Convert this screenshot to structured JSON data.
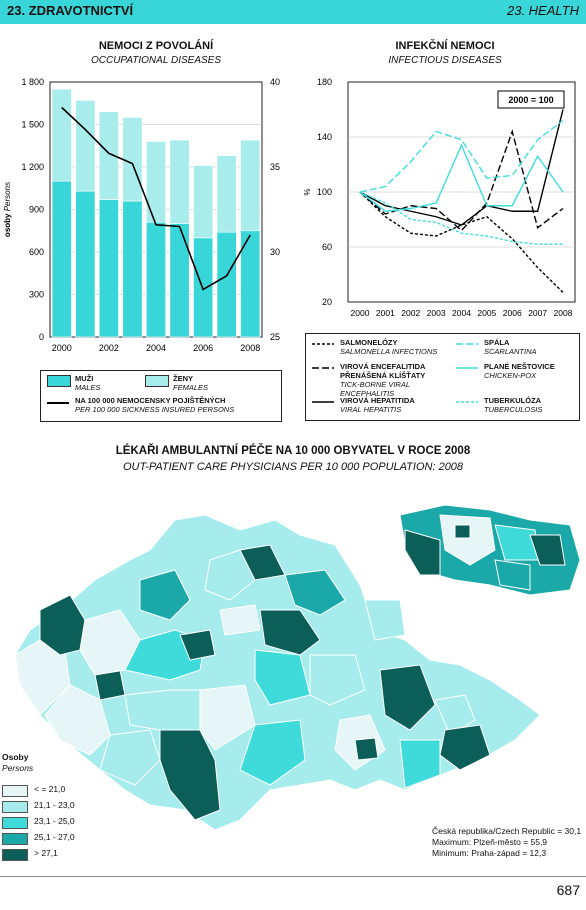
{
  "header": {
    "left": "23. ZDRAVOTNICTVÍ",
    "right": "23. HEALTH"
  },
  "occupational": {
    "title": "NEMOCI Z POVOLÁNÍ",
    "subtitle": "OCCUPATIONAL DISEASES",
    "ylabel": "osoby",
    "ylabel_en": "Persons",
    "legend": {
      "men": "MUŽI",
      "men_en": "MALES",
      "women": "ŽENY",
      "women_en": "FEMALES",
      "line": "NA 100 000 NEMOCENSKY POJIŠTĚNÝCH",
      "line_en": "PER 100 000 SICKNESS INSURED PERSONS"
    }
  },
  "infectious": {
    "title": "INFEKČNÍ NEMOCI",
    "subtitle": "INFECTIOUS DISEASES",
    "ylabel": "%",
    "base_label": "2000 = 100",
    "legend": [
      {
        "cz": "SALMONELÓZY",
        "en": "SALMONELLA INFECTIONS"
      },
      {
        "cz": "VIROVÁ ENCEFALITIDA PŘENÁŠENÁ KLÍŠŤATY",
        "en": "TICK-BORNE VIRAL ENCEPHALITIS"
      },
      {
        "cz": "VIROVÁ HEPATITIDA",
        "en": "VIRAL HEPATITIS"
      },
      {
        "cz": "SPÁLA",
        "en": "SCARLANTINA"
      },
      {
        "cz": "PLANÉ NEŠTOVICE",
        "en": "CHICKEN-POX"
      },
      {
        "cz": "TUBERKULÓZA",
        "en": "TUBERCULOSIS"
      }
    ]
  },
  "map": {
    "title": "LÉKAŘI AMBULANTNÍ PÉČE NA 10 000 OBYVATEL V ROCE 2008",
    "subtitle": "OUT-PATIENT CARE PHYSICIANS PER 10 000 POPULATION: 2008",
    "legend_title": "Osoby",
    "legend_sub": "Persons",
    "classes": [
      {
        "label": "< = 21,0",
        "color": "#e6f6f6"
      },
      {
        "label": "21,1 - 23,0",
        "color": "#a6ecec"
      },
      {
        "label": "23,1 - 25,0",
        "color": "#3fdbdb"
      },
      {
        "label": "25,1 - 27,0",
        "color": "#1aa8a8"
      },
      {
        "label": "> 27,1",
        "color": "#0b5f58"
      }
    ],
    "stats": [
      "Česká republika/Czech Republic = 30,1",
      "Maximum: Plzeň-město = 55,9",
      "Minimum: Praha-západ = 12,3"
    ]
  },
  "page_number": "687",
  "chart_data": [
    {
      "type": "bar",
      "title": "NEMOCI Z POVOLÁNÍ",
      "categories": [
        "2000",
        "2001",
        "2002",
        "2003",
        "2004",
        "2005",
        "2006",
        "2007",
        "2008"
      ],
      "xticks": [
        "2000",
        "2002",
        "2004",
        "2006",
        "2008"
      ],
      "series": [
        {
          "name": "MUŽI",
          "values": [
            1100,
            1030,
            970,
            960,
            810,
            800,
            700,
            740,
            750
          ],
          "color": "#38d6d8"
        },
        {
          "name": "ŽENY",
          "values": [
            650,
            640,
            620,
            590,
            570,
            590,
            510,
            540,
            640
          ],
          "color": "#a9ecec"
        },
        {
          "name": "NA 100 000 NEMOCENSKY POJIŠTĚNÝCH",
          "axis": "right",
          "values": [
            38.5,
            37.2,
            35.8,
            35.2,
            31.6,
            31.5,
            27.8,
            28.6,
            31.0
          ]
        }
      ],
      "yticks": [
        "0",
        "300",
        "600",
        "900",
        "1 200",
        "1 500",
        "1 800"
      ],
      "ylim": [
        0,
        1800
      ],
      "y2ticks": [
        "25",
        "30",
        "35",
        "40"
      ],
      "y2lim": [
        25,
        40
      ]
    },
    {
      "type": "line",
      "title": "INFEKČNÍ NEMOCI",
      "x": [
        "2000",
        "2001",
        "2002",
        "2003",
        "2004",
        "2005",
        "2006",
        "2007",
        "2008"
      ],
      "ylim": [
        20,
        180
      ],
      "yticks": [
        "20",
        "60",
        "100",
        "140",
        "180"
      ],
      "series": [
        {
          "name": "SALMONELÓZY",
          "values": [
            100,
            82,
            70,
            68,
            76,
            82,
            66,
            45,
            27
          ],
          "color": "#000000",
          "dash": "3,2"
        },
        {
          "name": "VIROVÁ ENCEFALITIDA PŘENÁŠENÁ KLÍŠŤATY",
          "values": [
            100,
            84,
            90,
            88,
            72,
            92,
            144,
            74,
            88
          ],
          "color": "#000000",
          "dash": "7,3"
        },
        {
          "name": "VIROVÁ HEPATITIDA",
          "values": [
            100,
            90,
            86,
            82,
            76,
            90,
            86,
            86,
            160
          ],
          "color": "#000000",
          "dash": ""
        },
        {
          "name": "SPÁLA",
          "values": [
            100,
            104,
            122,
            144,
            138,
            110,
            112,
            138,
            152
          ],
          "color": "#3fdede",
          "dash": "7,3"
        },
        {
          "name": "PLANÉ NEŠTOVICE",
          "values": [
            100,
            86,
            88,
            92,
            134,
            90,
            90,
            126,
            100
          ],
          "color": "#3fdede",
          "dash": ""
        },
        {
          "name": "TUBERKULÓZA",
          "values": [
            100,
            92,
            80,
            78,
            70,
            68,
            64,
            62,
            62
          ],
          "color": "#3fdede",
          "dash": "3,2"
        }
      ]
    }
  ]
}
